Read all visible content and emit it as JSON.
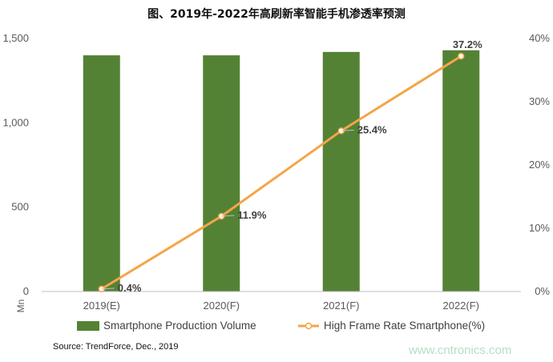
{
  "chart_data": {
    "type": "bar",
    "title": "图、2019年-2022年高刷新率智能手机渗透率预测",
    "categories": [
      "2019(E)",
      "2020(F)",
      "2021(F)",
      "2022(F)"
    ],
    "series": [
      {
        "name": "Smartphone Production Volume",
        "type": "bar",
        "axis": "left",
        "color": "#548235",
        "values": [
          1400,
          1400,
          1420,
          1430
        ]
      },
      {
        "name": "High Frame Rate Smartphone(%)",
        "type": "line",
        "axis": "right",
        "color": "#F4A548",
        "values": [
          0.4,
          11.9,
          25.4,
          37.2
        ],
        "labels": [
          "0.4%",
          "11.9%",
          "25.4%",
          "37.2%"
        ]
      }
    ],
    "ylabel": "Mn",
    "ylim": [
      0,
      1500
    ],
    "yticks": [
      "0",
      "500",
      "1,000",
      "1,500"
    ],
    "ylim_right": [
      0,
      40
    ],
    "yticks_right": [
      "0%",
      "10%",
      "20%",
      "30%",
      "40%"
    ],
    "legend_position": "bottom",
    "grid": false
  },
  "source": "Source: TrendForce, Dec., 2019",
  "watermark": "www.cntronics.com"
}
